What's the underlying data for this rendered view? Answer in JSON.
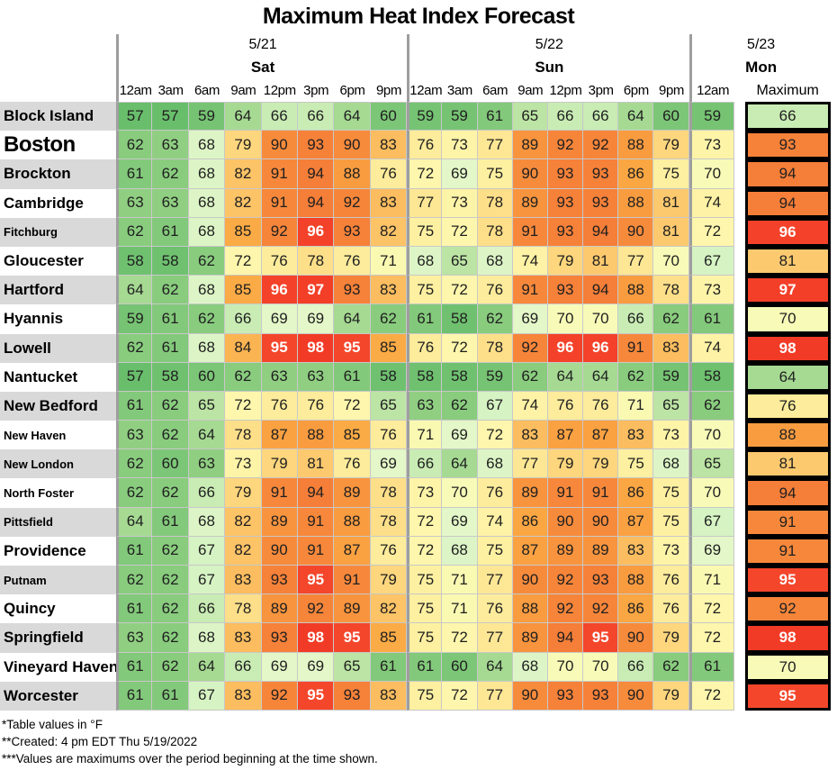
{
  "chart_data": {
    "type": "heatmap",
    "title": "Maximum Heat Index Forecast",
    "value_unit": "°F",
    "day_groups": [
      {
        "date": "5/21",
        "day": "Sat",
        "times": [
          "12am",
          "3am",
          "6am",
          "9am",
          "12pm",
          "3pm",
          "6pm",
          "9pm"
        ]
      },
      {
        "date": "5/22",
        "day": "Sun",
        "times": [
          "12am",
          "3am",
          "6am",
          "9am",
          "12pm",
          "3pm",
          "6pm",
          "9pm"
        ]
      },
      {
        "date": "5/23",
        "day": "Mon",
        "times": [
          "12am"
        ]
      }
    ],
    "max_column_label": "Maximum",
    "rows": [
      {
        "city": "Block Island",
        "emphasis": "md",
        "values": [
          57,
          57,
          59,
          64,
          66,
          66,
          64,
          60,
          59,
          59,
          61,
          65,
          66,
          66,
          64,
          60,
          59
        ],
        "maximum": 66
      },
      {
        "city": "Boston",
        "emphasis": "xl",
        "values": [
          62,
          63,
          68,
          79,
          90,
          93,
          90,
          83,
          76,
          73,
          77,
          89,
          92,
          92,
          88,
          79,
          73
        ],
        "maximum": 93
      },
      {
        "city": "Brockton",
        "emphasis": "md",
        "values": [
          61,
          62,
          68,
          82,
          91,
          94,
          88,
          76,
          72,
          69,
          75,
          90,
          93,
          93,
          86,
          75,
          70
        ],
        "maximum": 94
      },
      {
        "city": "Cambridge",
        "emphasis": "md",
        "values": [
          63,
          63,
          68,
          82,
          91,
          94,
          92,
          83,
          77,
          73,
          78,
          89,
          93,
          93,
          88,
          81,
          74
        ],
        "maximum": 94
      },
      {
        "city": "Fitchburg",
        "emphasis": "sm",
        "values": [
          62,
          61,
          68,
          85,
          92,
          96,
          93,
          82,
          75,
          72,
          78,
          91,
          93,
          94,
          90,
          81,
          72
        ],
        "maximum": 96
      },
      {
        "city": "Gloucester",
        "emphasis": "md",
        "values": [
          58,
          58,
          62,
          72,
          76,
          78,
          76,
          71,
          68,
          65,
          68,
          74,
          79,
          81,
          77,
          70,
          67
        ],
        "maximum": 81
      },
      {
        "city": "Hartford",
        "emphasis": "md",
        "values": [
          64,
          62,
          68,
          85,
          96,
          97,
          93,
          83,
          75,
          72,
          76,
          91,
          93,
          94,
          88,
          78,
          73
        ],
        "maximum": 97
      },
      {
        "city": "Hyannis",
        "emphasis": "md",
        "values": [
          59,
          61,
          62,
          66,
          69,
          69,
          64,
          62,
          61,
          58,
          62,
          69,
          70,
          70,
          66,
          62,
          61
        ],
        "maximum": 70
      },
      {
        "city": "Lowell",
        "emphasis": "md",
        "values": [
          62,
          61,
          68,
          84,
          95,
          98,
          95,
          85,
          76,
          72,
          78,
          92,
          96,
          96,
          91,
          83,
          74
        ],
        "maximum": 98
      },
      {
        "city": "Nantucket",
        "emphasis": "md",
        "values": [
          57,
          58,
          60,
          62,
          63,
          63,
          61,
          58,
          58,
          58,
          59,
          62,
          64,
          64,
          62,
          59,
          58
        ],
        "maximum": 64
      },
      {
        "city": "New Bedford",
        "emphasis": "md",
        "values": [
          61,
          62,
          65,
          72,
          76,
          76,
          72,
          65,
          63,
          62,
          67,
          74,
          76,
          76,
          71,
          65,
          62
        ],
        "maximum": 76
      },
      {
        "city": "New Haven",
        "emphasis": "sm",
        "values": [
          63,
          62,
          64,
          78,
          87,
          88,
          85,
          76,
          71,
          69,
          72,
          83,
          87,
          87,
          83,
          73,
          70
        ],
        "maximum": 88
      },
      {
        "city": "New London",
        "emphasis": "sm",
        "values": [
          62,
          60,
          63,
          73,
          79,
          81,
          76,
          69,
          66,
          64,
          68,
          77,
          79,
          79,
          75,
          68,
          65
        ],
        "maximum": 81
      },
      {
        "city": "North Foster",
        "emphasis": "sm",
        "values": [
          62,
          62,
          66,
          79,
          91,
          94,
          89,
          78,
          73,
          70,
          76,
          89,
          91,
          91,
          86,
          75,
          70
        ],
        "maximum": 94
      },
      {
        "city": "Pittsfield",
        "emphasis": "sm",
        "values": [
          64,
          61,
          68,
          82,
          89,
          91,
          88,
          78,
          72,
          69,
          74,
          86,
          90,
          90,
          87,
          75,
          67
        ],
        "maximum": 91
      },
      {
        "city": "Providence",
        "emphasis": "md",
        "values": [
          61,
          62,
          67,
          82,
          90,
          91,
          87,
          76,
          72,
          68,
          75,
          87,
          89,
          89,
          83,
          73,
          69
        ],
        "maximum": 91
      },
      {
        "city": "Putnam",
        "emphasis": "sm",
        "values": [
          62,
          62,
          67,
          83,
          93,
          95,
          91,
          79,
          75,
          71,
          77,
          90,
          92,
          93,
          88,
          76,
          71
        ],
        "maximum": 95
      },
      {
        "city": "Quincy",
        "emphasis": "md",
        "values": [
          61,
          62,
          66,
          78,
          89,
          92,
          89,
          82,
          75,
          71,
          76,
          88,
          92,
          92,
          86,
          76,
          72
        ],
        "maximum": 92
      },
      {
        "city": "Springfield",
        "emphasis": "md",
        "values": [
          63,
          62,
          68,
          83,
          93,
          98,
          95,
          85,
          75,
          72,
          77,
          89,
          94,
          95,
          90,
          79,
          72
        ],
        "maximum": 98
      },
      {
        "city": "Vineyard Haven",
        "emphasis": "md",
        "values": [
          61,
          62,
          64,
          66,
          69,
          69,
          65,
          61,
          61,
          60,
          64,
          68,
          70,
          70,
          66,
          62,
          61
        ],
        "maximum": 70
      },
      {
        "city": "Worcester",
        "emphasis": "md",
        "values": [
          61,
          61,
          67,
          83,
          92,
          95,
          93,
          83,
          75,
          72,
          77,
          90,
          93,
          93,
          90,
          79,
          72
        ],
        "maximum": 95
      }
    ],
    "color_scale": {
      "stops": [
        [
          57,
          "#69be6c"
        ],
        [
          60,
          "#7cc677"
        ],
        [
          63,
          "#90cf82"
        ],
        [
          65,
          "#bce4a4"
        ],
        [
          67,
          "#d6f3c3"
        ],
        [
          69,
          "#e4f7c8"
        ],
        [
          70,
          "#f7fbb7"
        ],
        [
          72,
          "#fdf6ac"
        ],
        [
          75,
          "#fdf0a1"
        ],
        [
          77,
          "#fde795"
        ],
        [
          79,
          "#fdd67d"
        ],
        [
          81,
          "#fcc96f"
        ],
        [
          83,
          "#fbbd5f"
        ],
        [
          85,
          "#fbab45"
        ],
        [
          88,
          "#f99c40"
        ],
        [
          90,
          "#f78b3c"
        ],
        [
          94,
          "#f57e38"
        ],
        [
          95,
          "#f4462b"
        ],
        [
          98,
          "#f23b26"
        ]
      ],
      "white_text_threshold": 95
    }
  },
  "footnotes": [
    "*Table values in °F",
    "**Created: 4 pm EDT Thu 5/19/2022",
    "***Values are maximums over the period beginning at the time shown."
  ]
}
